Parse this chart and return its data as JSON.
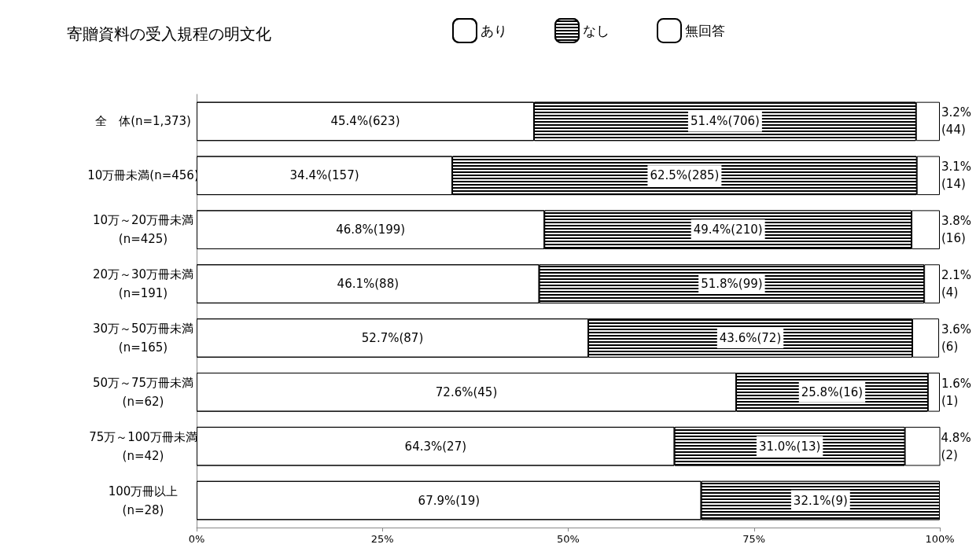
{
  "chart_data": {
    "type": "bar",
    "orientation": "horizontal",
    "stacked": true,
    "title": "寄贈資料の受入規程の明文化",
    "categories": [
      "全　体(n=1,373)",
      "10万冊未満(n=456)",
      "10万～20万冊未満\n(n=425)",
      "20万～30万冊未満\n(n=191)",
      "30万～50万冊未満\n(n=165)",
      "50万～75万冊未満\n(n=62)",
      "75万～100万冊未満\n(n=42)",
      "100万冊以上\n(n=28)"
    ],
    "series": [
      {
        "name": "あり",
        "color": "#ffffff",
        "values": [
          45.4,
          34.4,
          46.8,
          46.1,
          52.7,
          72.6,
          64.3,
          67.9
        ],
        "value_labels": [
          "45.4%(623)",
          "34.4%(157)",
          "46.8%(199)",
          "46.1%(88)",
          "52.7%(87)",
          "72.6%(45)",
          "64.3%(27)",
          "67.9%(19)"
        ]
      },
      {
        "name": "なし",
        "color": "#000000",
        "values": [
          51.4,
          62.5,
          49.4,
          51.8,
          43.6,
          25.8,
          31.0,
          32.1
        ],
        "value_labels": [
          "51.4%(706)",
          "62.5%(285)",
          "49.4%(210)",
          "51.8%(99)",
          "43.6%(72)",
          "25.8%(16)",
          "31.0%(13)",
          "32.1%(9)"
        ]
      },
      {
        "name": "無回答",
        "color": "#ffffff",
        "values": [
          3.2,
          3.1,
          3.8,
          2.1,
          3.6,
          1.6,
          4.8,
          null
        ],
        "value_labels": [
          "3.2%\n(44)",
          "3.1%\n(14)",
          "3.8%\n(16)",
          "2.1%\n(4)",
          "3.6%\n(6)",
          "1.6%\n(1)",
          "4.8%\n(2)",
          null
        ]
      }
    ],
    "xlim": [
      0,
      100
    ],
    "xticks": [
      {
        "value": 0,
        "label": "0%"
      },
      {
        "value": 25,
        "label": "25%"
      },
      {
        "value": 50,
        "label": "50%"
      },
      {
        "value": 75,
        "label": "75%"
      },
      {
        "value": 100,
        "label": "100%"
      }
    ],
    "grid": false,
    "legend": "top"
  }
}
